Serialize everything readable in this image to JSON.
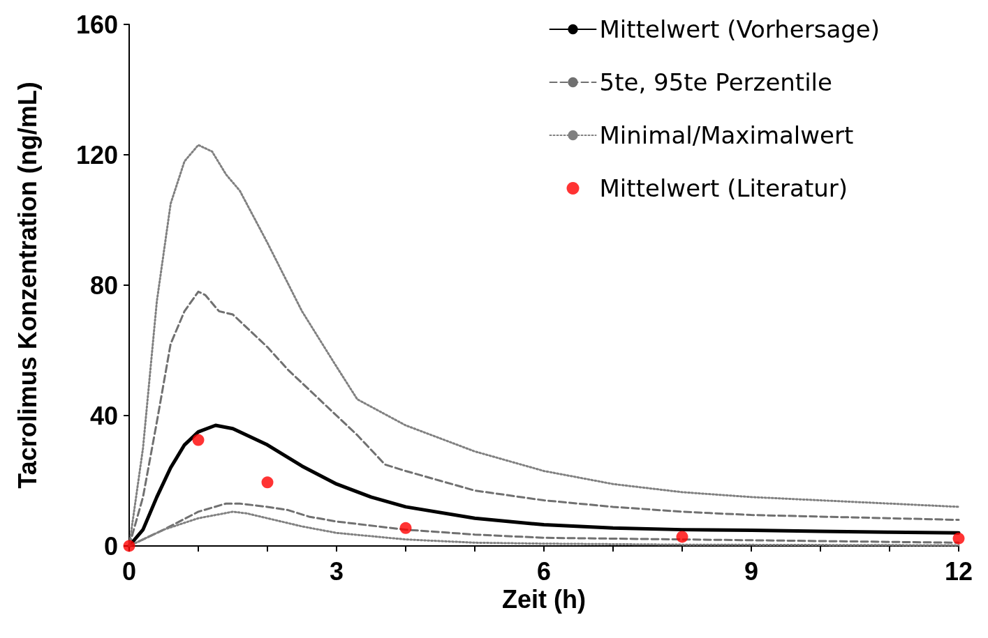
{
  "chart_data": {
    "type": "line",
    "xlabel": "Zeit (h)",
    "ylabel": "Tacrolimus Konzentration (ng/mL)",
    "xlim": [
      0,
      12
    ],
    "ylim": [
      0,
      160
    ],
    "xticks": [
      0,
      {
        "value": 1,
        "label": null
      },
      {
        "value": 2,
        "label": null
      },
      3,
      {
        "value": 4,
        "label": null
      },
      {
        "value": 5,
        "label": null
      },
      6,
      {
        "value": 7,
        "label": null
      },
      {
        "value": 8,
        "label": null
      },
      9,
      {
        "value": 10,
        "label": null
      },
      {
        "value": 11,
        "label": null
      },
      12
    ],
    "yticks": [
      0,
      40,
      80,
      120,
      160
    ],
    "grid": false,
    "legend": "top right",
    "marker": "none",
    "series": [
      {
        "name": "Mittelwert (Vorhersage)",
        "color": "#000000",
        "line_style": "solid",
        "x": [
          0,
          0.2,
          0.4,
          0.6,
          0.8,
          1.0,
          1.25,
          1.5,
          2,
          2.5,
          3,
          3.5,
          4,
          5,
          6,
          7,
          8,
          9,
          10,
          11,
          12
        ],
        "values": [
          0,
          5,
          15,
          24,
          31,
          35,
          37,
          36,
          31,
          24.5,
          19,
          15,
          12,
          8.5,
          6.5,
          5.5,
          5,
          4.8,
          4.5,
          4.2,
          4
        ]
      },
      {
        "name": "5te, 95te Perzentile",
        "color": "#707070",
        "line_style": "dashed",
        "x": [
          0,
          0.2,
          0.4,
          0.6,
          0.8,
          1.0,
          1.1,
          1.3,
          1.5,
          2,
          2.3,
          3,
          3.3,
          3.7,
          4,
          4.5,
          5,
          6,
          7,
          8,
          9,
          10,
          11,
          12
        ],
        "values": [
          0,
          15,
          38,
          62,
          72,
          78,
          77,
          72,
          71,
          61,
          54,
          40,
          34,
          25,
          23,
          20,
          17,
          14,
          12,
          10.5,
          9.5,
          9,
          8.5,
          8
        ]
      },
      {
        "color": "#707070",
        "line_style": "dashed",
        "x": [
          0,
          0.5,
          1,
          1.4,
          1.6,
          2,
          2.3,
          2.6,
          3,
          4,
          5,
          6,
          8,
          10,
          12
        ],
        "values": [
          0,
          5,
          10.5,
          13,
          13,
          12,
          11,
          9,
          7.5,
          5,
          3.5,
          2.5,
          2,
          1.5,
          1
        ]
      },
      {
        "name": "Minimal/Maximalwert",
        "color": "#808080",
        "line_style": "dotted",
        "x": [
          0,
          0.2,
          0.4,
          0.6,
          0.8,
          1.0,
          1.2,
          1.4,
          1.6,
          2,
          2.5,
          3,
          3.3,
          4,
          5,
          6,
          7,
          8,
          9,
          10,
          11,
          12
        ],
        "values": [
          0,
          30,
          75,
          105,
          118,
          123,
          121,
          114,
          109,
          93,
          72,
          55,
          45,
          37,
          29,
          23,
          19,
          16.5,
          15,
          14,
          13,
          12
        ]
      },
      {
        "color": "#808080",
        "line_style": "dotted",
        "x": [
          0,
          0.5,
          1,
          1.5,
          1.7,
          2,
          2.5,
          3,
          4,
          5,
          6,
          8,
          12
        ],
        "values": [
          0,
          5,
          8.5,
          10.5,
          10,
          8.5,
          6,
          4,
          2,
          1,
          0.7,
          0.4,
          0.2
        ]
      },
      {
        "name": "Mittelwert (Literatur)",
        "type": "scatter",
        "marker": "circle",
        "color": "#ff0000",
        "x": [
          0,
          1,
          2,
          4,
          8,
          12
        ],
        "values": [
          0,
          32.5,
          19.5,
          5.5,
          2.8,
          2.3
        ]
      }
    ]
  }
}
